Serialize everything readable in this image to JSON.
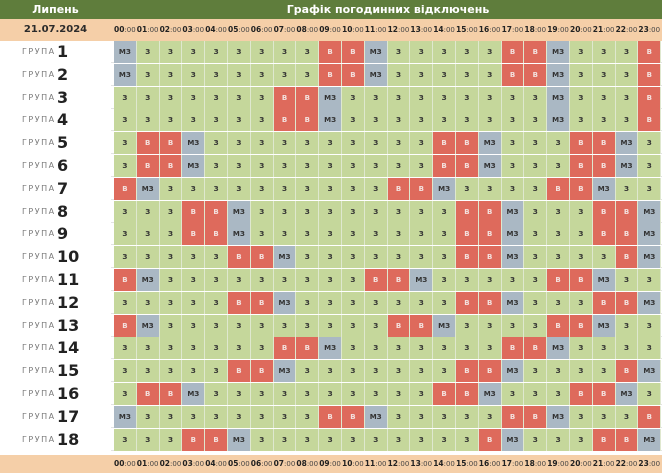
{
  "header": {
    "month": "Липень",
    "title": "Графік погодинних відключень",
    "date": "21.07.2024"
  },
  "group_word": "ГРУПА",
  "legend": {
    "z": "З",
    "v": "В",
    "m": "МЗ"
  },
  "colors": {
    "header_bg": "#5f7d3c",
    "date_bg": "#f5cfa8",
    "z": "#c5d79b",
    "v": "#de6a5c",
    "mz": "#aab8c4"
  },
  "hours": [
    "00:00",
    "01:00",
    "02:00",
    "03:00",
    "04:00",
    "05:00",
    "06:00",
    "07:00",
    "08:00",
    "09:00",
    "10:00",
    "11:00",
    "12:00",
    "13:00",
    "14:00",
    "15:00",
    "16:00",
    "17:00",
    "18:00",
    "19:00",
    "20:00",
    "21:00",
    "22:00",
    "23:00"
  ],
  "groups": [
    {
      "num": "1",
      "cells": [
        "m",
        "z",
        "z",
        "z",
        "z",
        "z",
        "z",
        "z",
        "z",
        "v",
        "v",
        "m",
        "z",
        "z",
        "z",
        "z",
        "z",
        "v",
        "v",
        "m",
        "z",
        "z",
        "z",
        "v"
      ]
    },
    {
      "num": "2",
      "cells": [
        "m",
        "z",
        "z",
        "z",
        "z",
        "z",
        "z",
        "z",
        "z",
        "v",
        "v",
        "m",
        "z",
        "z",
        "z",
        "z",
        "z",
        "v",
        "v",
        "m",
        "z",
        "z",
        "z",
        "v"
      ]
    },
    {
      "num": "3",
      "cells": [
        "z",
        "z",
        "z",
        "z",
        "z",
        "z",
        "z",
        "v",
        "v",
        "m",
        "z",
        "z",
        "z",
        "z",
        "z",
        "z",
        "z",
        "z",
        "z",
        "m",
        "z",
        "z",
        "z",
        "v"
      ]
    },
    {
      "num": "4",
      "cells": [
        "z",
        "z",
        "z",
        "z",
        "z",
        "z",
        "z",
        "v",
        "v",
        "m",
        "z",
        "z",
        "z",
        "z",
        "z",
        "z",
        "z",
        "z",
        "z",
        "m",
        "z",
        "z",
        "z",
        "v"
      ]
    },
    {
      "num": "5",
      "cells": [
        "z",
        "v",
        "v",
        "m",
        "z",
        "z",
        "z",
        "z",
        "z",
        "z",
        "z",
        "z",
        "z",
        "z",
        "v",
        "v",
        "m",
        "z",
        "z",
        "z",
        "v",
        "v",
        "m",
        "z"
      ]
    },
    {
      "num": "6",
      "cells": [
        "z",
        "v",
        "v",
        "m",
        "z",
        "z",
        "z",
        "z",
        "z",
        "z",
        "z",
        "z",
        "z",
        "z",
        "v",
        "v",
        "m",
        "z",
        "z",
        "z",
        "v",
        "v",
        "m",
        "z"
      ]
    },
    {
      "num": "7",
      "cells": [
        "v",
        "m",
        "z",
        "z",
        "z",
        "z",
        "z",
        "z",
        "z",
        "z",
        "z",
        "z",
        "v",
        "v",
        "m",
        "z",
        "z",
        "z",
        "z",
        "v",
        "v",
        "m",
        "z",
        "z"
      ]
    },
    {
      "num": "8",
      "cells": [
        "z",
        "z",
        "z",
        "v",
        "v",
        "m",
        "z",
        "z",
        "z",
        "z",
        "z",
        "z",
        "z",
        "z",
        "z",
        "v",
        "v",
        "m",
        "z",
        "z",
        "z",
        "v",
        "v",
        "m"
      ]
    },
    {
      "num": "9",
      "cells": [
        "z",
        "z",
        "z",
        "v",
        "v",
        "m",
        "z",
        "z",
        "z",
        "z",
        "z",
        "z",
        "z",
        "z",
        "z",
        "v",
        "v",
        "m",
        "z",
        "z",
        "z",
        "v",
        "v",
        "m"
      ]
    },
    {
      "num": "10",
      "cells": [
        "z",
        "z",
        "z",
        "z",
        "z",
        "v",
        "v",
        "m",
        "z",
        "z",
        "z",
        "z",
        "z",
        "z",
        "z",
        "v",
        "v",
        "m",
        "z",
        "z",
        "z",
        "z",
        "v",
        "m"
      ]
    },
    {
      "num": "11",
      "cells": [
        "v",
        "m",
        "z",
        "z",
        "z",
        "z",
        "z",
        "z",
        "z",
        "z",
        "z",
        "v",
        "v",
        "m",
        "z",
        "z",
        "z",
        "z",
        "z",
        "v",
        "v",
        "m",
        "z",
        "z"
      ]
    },
    {
      "num": "12",
      "cells": [
        "z",
        "z",
        "z",
        "z",
        "z",
        "v",
        "v",
        "m",
        "z",
        "z",
        "z",
        "z",
        "z",
        "z",
        "z",
        "v",
        "v",
        "m",
        "z",
        "z",
        "z",
        "v",
        "v",
        "m"
      ]
    },
    {
      "num": "13",
      "cells": [
        "v",
        "m",
        "z",
        "z",
        "z",
        "z",
        "z",
        "z",
        "z",
        "z",
        "z",
        "z",
        "v",
        "v",
        "m",
        "z",
        "z",
        "z",
        "z",
        "v",
        "v",
        "m",
        "z",
        "z"
      ]
    },
    {
      "num": "14",
      "cells": [
        "z",
        "z",
        "z",
        "z",
        "z",
        "z",
        "z",
        "v",
        "v",
        "m",
        "z",
        "z",
        "z",
        "z",
        "z",
        "z",
        "z",
        "v",
        "v",
        "m",
        "z",
        "z",
        "z",
        "z"
      ]
    },
    {
      "num": "15",
      "cells": [
        "z",
        "z",
        "z",
        "z",
        "z",
        "v",
        "v",
        "m",
        "z",
        "z",
        "z",
        "z",
        "z",
        "z",
        "z",
        "v",
        "v",
        "m",
        "z",
        "z",
        "z",
        "z",
        "v",
        "m"
      ]
    },
    {
      "num": "16",
      "cells": [
        "z",
        "v",
        "v",
        "m",
        "z",
        "z",
        "z",
        "z",
        "z",
        "z",
        "z",
        "z",
        "z",
        "z",
        "v",
        "v",
        "m",
        "z",
        "z",
        "z",
        "v",
        "v",
        "m",
        "z"
      ]
    },
    {
      "num": "17",
      "cells": [
        "m",
        "z",
        "z",
        "z",
        "z",
        "z",
        "z",
        "z",
        "z",
        "v",
        "v",
        "m",
        "z",
        "z",
        "z",
        "z",
        "z",
        "v",
        "v",
        "m",
        "z",
        "z",
        "z",
        "v"
      ]
    },
    {
      "num": "18",
      "cells": [
        "z",
        "z",
        "z",
        "v",
        "v",
        "m",
        "z",
        "z",
        "z",
        "z",
        "z",
        "z",
        "z",
        "z",
        "z",
        "z",
        "v",
        "m",
        "z",
        "z",
        "z",
        "v",
        "v",
        "m"
      ]
    }
  ]
}
